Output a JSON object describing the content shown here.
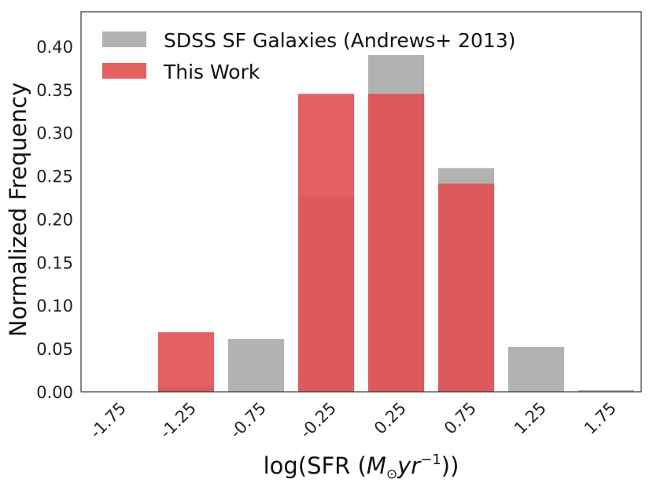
{
  "chart_data": {
    "type": "bar",
    "categories": [
      "-1.75",
      "-1.25",
      "-0.75",
      "-0.25",
      "0.25",
      "0.75",
      "1.25",
      "1.75"
    ],
    "series": [
      {
        "name": "SDSS SF Galaxies (Andrews+ 2013)",
        "color": "#b2b2b2",
        "values": [
          0.0,
          0.006,
          0.061,
          0.227,
          0.39,
          0.259,
          0.052,
          0.002
        ]
      },
      {
        "name": "This Work",
        "color": "#e05050",
        "opacity": 0.9,
        "values": [
          0.0,
          0.069,
          0.0,
          0.345,
          0.345,
          0.241,
          0.0,
          0.0
        ]
      }
    ],
    "xlabel": "log(SFR (M⊙yr⁻¹))",
    "ylabel": "Normalized Frequency",
    "ylim": [
      0,
      0.44
    ],
    "yticks": [
      "0.00",
      "0.05",
      "0.10",
      "0.15",
      "0.20",
      "0.25",
      "0.30",
      "0.35",
      "0.40"
    ],
    "xlabel_parts": {
      "pre": "log(SFR (",
      "m": "M",
      "sun": "⊙",
      "yr": "yr",
      "exp": "−1",
      "post": "))"
    },
    "grid": false,
    "legend_position": "upper-left"
  }
}
